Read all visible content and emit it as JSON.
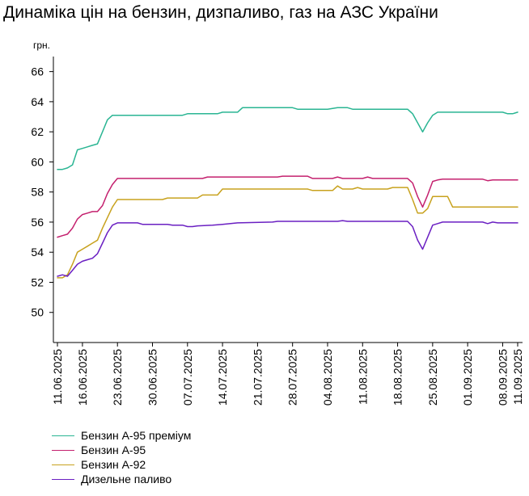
{
  "chart_data": {
    "type": "line",
    "title": "Динаміка цін на бензин, дизпаливо, газ на АЗС України",
    "ylabel": "грн.",
    "xlabel": "",
    "ylim": [
      48,
      67
    ],
    "yticks": [
      50,
      52,
      54,
      56,
      58,
      60,
      62,
      64,
      66
    ],
    "x_start": "2025-06-11",
    "x_end": "2025-09-11",
    "x_tick_labels": [
      "11.06.2025",
      "16.06.2025",
      "23.06.2025",
      "30.06.2025",
      "07.07.2025",
      "14.07.2025",
      "21.07.2025",
      "28.07.2025",
      "04.08.2025",
      "11.08.2025",
      "18.08.2025",
      "25.08.2025",
      "01.09.2025",
      "08.09.2025",
      "11.09.2025"
    ],
    "x_tick_dates": [
      "2025-06-11",
      "2025-06-16",
      "2025-06-23",
      "2025-06-30",
      "2025-07-07",
      "2025-07-14",
      "2025-07-21",
      "2025-07-28",
      "2025-08-04",
      "2025-08-11",
      "2025-08-18",
      "2025-08-25",
      "2025-09-01",
      "2025-09-08",
      "2025-09-11"
    ],
    "grid": false,
    "legend_position": "bottom-left",
    "series": [
      {
        "name": "Бензин А-95 преміум",
        "color": "#2ab593",
        "points": [
          [
            "2025-06-11",
            59.5
          ],
          [
            "2025-06-12",
            59.5
          ],
          [
            "2025-06-13",
            59.6
          ],
          [
            "2025-06-14",
            59.8
          ],
          [
            "2025-06-15",
            60.8
          ],
          [
            "2025-06-16",
            60.9
          ],
          [
            "2025-06-17",
            61.0
          ],
          [
            "2025-06-18",
            61.1
          ],
          [
            "2025-06-19",
            61.2
          ],
          [
            "2025-06-20",
            62.0
          ],
          [
            "2025-06-21",
            62.8
          ],
          [
            "2025-06-22",
            63.1
          ],
          [
            "2025-06-23",
            63.1
          ],
          [
            "2025-06-30",
            63.1
          ],
          [
            "2025-07-06",
            63.1
          ],
          [
            "2025-07-07",
            63.2
          ],
          [
            "2025-07-13",
            63.2
          ],
          [
            "2025-07-14",
            63.3
          ],
          [
            "2025-07-17",
            63.3
          ],
          [
            "2025-07-18",
            63.6
          ],
          [
            "2025-07-28",
            63.6
          ],
          [
            "2025-07-29",
            63.5
          ],
          [
            "2025-08-04",
            63.5
          ],
          [
            "2025-08-06",
            63.6
          ],
          [
            "2025-08-08",
            63.6
          ],
          [
            "2025-08-09",
            63.5
          ],
          [
            "2025-08-20",
            63.5
          ],
          [
            "2025-08-21",
            63.2
          ],
          [
            "2025-08-22",
            62.6
          ],
          [
            "2025-08-23",
            62.0
          ],
          [
            "2025-08-24",
            62.6
          ],
          [
            "2025-08-25",
            63.1
          ],
          [
            "2025-08-26",
            63.3
          ],
          [
            "2025-08-27",
            63.3
          ],
          [
            "2025-09-08",
            63.3
          ],
          [
            "2025-09-09",
            63.2
          ],
          [
            "2025-09-10",
            63.2
          ],
          [
            "2025-09-11",
            63.3
          ]
        ]
      },
      {
        "name": "Бензин А-95",
        "color": "#c4206e",
        "points": [
          [
            "2025-06-11",
            55.0
          ],
          [
            "2025-06-12",
            55.1
          ],
          [
            "2025-06-13",
            55.2
          ],
          [
            "2025-06-14",
            55.6
          ],
          [
            "2025-06-15",
            56.2
          ],
          [
            "2025-06-16",
            56.5
          ],
          [
            "2025-06-17",
            56.6
          ],
          [
            "2025-06-18",
            56.7
          ],
          [
            "2025-06-19",
            56.7
          ],
          [
            "2025-06-20",
            57.1
          ],
          [
            "2025-06-21",
            57.9
          ],
          [
            "2025-06-22",
            58.5
          ],
          [
            "2025-06-23",
            58.9
          ],
          [
            "2025-06-30",
            58.9
          ],
          [
            "2025-07-07",
            58.9
          ],
          [
            "2025-07-10",
            58.9
          ],
          [
            "2025-07-11",
            59.0
          ],
          [
            "2025-07-25",
            59.0
          ],
          [
            "2025-07-26",
            59.05
          ],
          [
            "2025-07-31",
            59.05
          ],
          [
            "2025-08-01",
            58.9
          ],
          [
            "2025-08-05",
            58.9
          ],
          [
            "2025-08-06",
            59.0
          ],
          [
            "2025-08-07",
            58.9
          ],
          [
            "2025-08-11",
            58.9
          ],
          [
            "2025-08-12",
            59.0
          ],
          [
            "2025-08-13",
            58.9
          ],
          [
            "2025-08-20",
            58.9
          ],
          [
            "2025-08-21",
            58.6
          ],
          [
            "2025-08-22",
            57.7
          ],
          [
            "2025-08-23",
            57.0
          ],
          [
            "2025-08-24",
            57.8
          ],
          [
            "2025-08-25",
            58.7
          ],
          [
            "2025-08-26",
            58.8
          ],
          [
            "2025-08-27",
            58.85
          ],
          [
            "2025-09-04",
            58.85
          ],
          [
            "2025-09-05",
            58.75
          ],
          [
            "2025-09-06",
            58.8
          ],
          [
            "2025-09-11",
            58.8
          ]
        ]
      },
      {
        "name": "Бензин А-92",
        "color": "#c8a21e",
        "points": [
          [
            "2025-06-11",
            52.3
          ],
          [
            "2025-06-12",
            52.3
          ],
          [
            "2025-06-13",
            52.5
          ],
          [
            "2025-06-14",
            53.2
          ],
          [
            "2025-06-15",
            54.0
          ],
          [
            "2025-06-16",
            54.2
          ],
          [
            "2025-06-17",
            54.4
          ],
          [
            "2025-06-18",
            54.6
          ],
          [
            "2025-06-19",
            54.8
          ],
          [
            "2025-06-20",
            55.6
          ],
          [
            "2025-06-21",
            56.3
          ],
          [
            "2025-06-22",
            57.0
          ],
          [
            "2025-06-23",
            57.5
          ],
          [
            "2025-06-30",
            57.5
          ],
          [
            "2025-07-02",
            57.5
          ],
          [
            "2025-07-03",
            57.6
          ],
          [
            "2025-07-09",
            57.6
          ],
          [
            "2025-07-10",
            57.8
          ],
          [
            "2025-07-13",
            57.8
          ],
          [
            "2025-07-14",
            58.2
          ],
          [
            "2025-07-31",
            58.2
          ],
          [
            "2025-08-01",
            58.1
          ],
          [
            "2025-08-05",
            58.1
          ],
          [
            "2025-08-06",
            58.4
          ],
          [
            "2025-08-07",
            58.2
          ],
          [
            "2025-08-09",
            58.2
          ],
          [
            "2025-08-10",
            58.3
          ],
          [
            "2025-08-11",
            58.2
          ],
          [
            "2025-08-16",
            58.2
          ],
          [
            "2025-08-17",
            58.3
          ],
          [
            "2025-08-20",
            58.3
          ],
          [
            "2025-08-21",
            57.5
          ],
          [
            "2025-08-22",
            56.6
          ],
          [
            "2025-08-23",
            56.6
          ],
          [
            "2025-08-24",
            56.9
          ],
          [
            "2025-08-25",
            57.7
          ],
          [
            "2025-08-28",
            57.7
          ],
          [
            "2025-08-29",
            57.0
          ],
          [
            "2025-09-11",
            57.0
          ]
        ]
      },
      {
        "name": "Дизельне паливо",
        "color": "#6a1fc2",
        "points": [
          [
            "2025-06-11",
            52.4
          ],
          [
            "2025-06-12",
            52.5
          ],
          [
            "2025-06-13",
            52.4
          ],
          [
            "2025-06-14",
            52.8
          ],
          [
            "2025-06-15",
            53.2
          ],
          [
            "2025-06-16",
            53.4
          ],
          [
            "2025-06-17",
            53.5
          ],
          [
            "2025-06-18",
            53.6
          ],
          [
            "2025-06-19",
            53.9
          ],
          [
            "2025-06-20",
            54.6
          ],
          [
            "2025-06-21",
            55.3
          ],
          [
            "2025-06-22",
            55.8
          ],
          [
            "2025-06-23",
            55.95
          ],
          [
            "2025-06-27",
            55.95
          ],
          [
            "2025-06-28",
            55.85
          ],
          [
            "2025-07-03",
            55.85
          ],
          [
            "2025-07-04",
            55.8
          ],
          [
            "2025-07-06",
            55.8
          ],
          [
            "2025-07-07",
            55.7
          ],
          [
            "2025-07-08",
            55.7
          ],
          [
            "2025-07-09",
            55.75
          ],
          [
            "2025-07-12",
            55.8
          ],
          [
            "2025-07-14",
            55.85
          ],
          [
            "2025-07-17",
            55.95
          ],
          [
            "2025-07-24",
            56.0
          ],
          [
            "2025-07-25",
            56.05
          ],
          [
            "2025-08-06",
            56.05
          ],
          [
            "2025-08-07",
            56.1
          ],
          [
            "2025-08-08",
            56.05
          ],
          [
            "2025-08-20",
            56.05
          ],
          [
            "2025-08-21",
            55.7
          ],
          [
            "2025-08-22",
            54.8
          ],
          [
            "2025-08-23",
            54.2
          ],
          [
            "2025-08-24",
            55.0
          ],
          [
            "2025-08-25",
            55.8
          ],
          [
            "2025-08-26",
            55.9
          ],
          [
            "2025-08-27",
            56.0
          ],
          [
            "2025-09-04",
            56.0
          ],
          [
            "2025-09-05",
            55.9
          ],
          [
            "2025-09-06",
            56.0
          ],
          [
            "2025-09-07",
            55.95
          ],
          [
            "2025-09-11",
            55.95
          ]
        ]
      }
    ]
  }
}
